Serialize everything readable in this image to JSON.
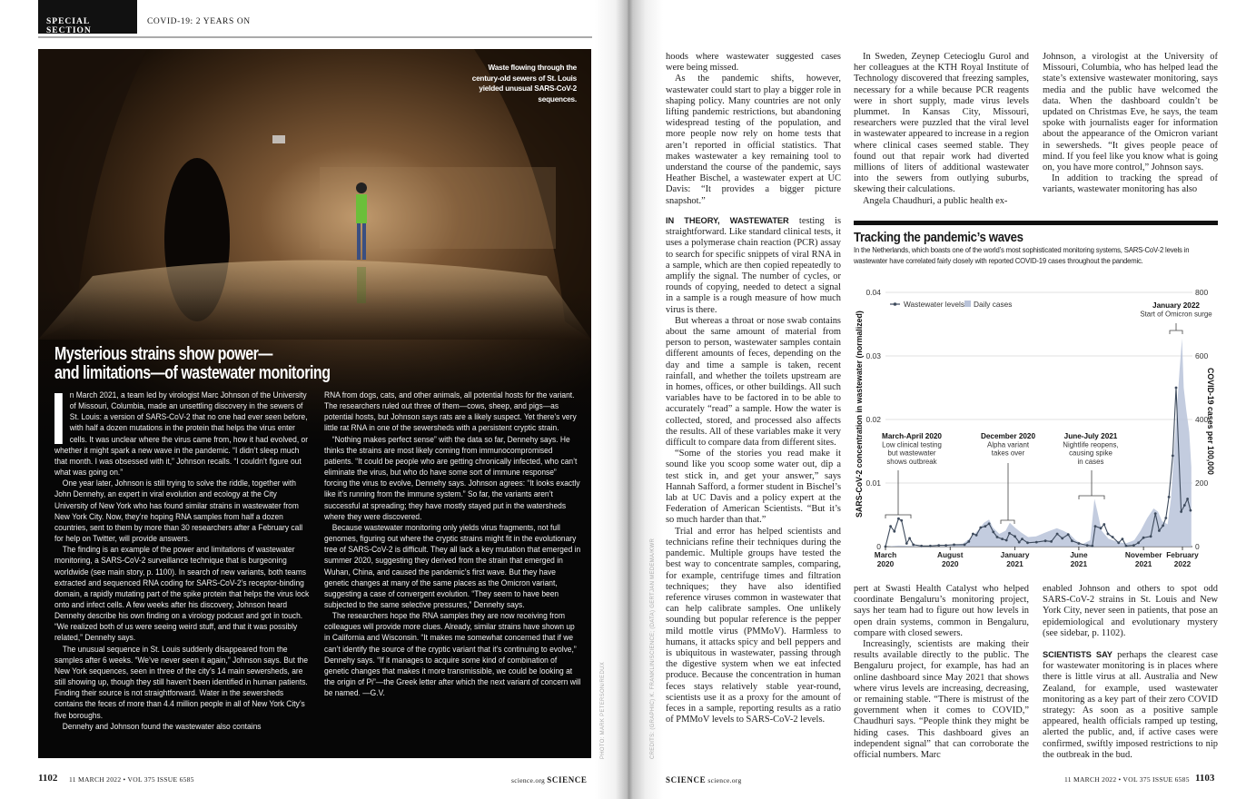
{
  "header": {
    "section": "SPECIAL SECTION",
    "title": "COVID-19: 2 YEARS ON"
  },
  "photo": {
    "caption": "Waste flowing through the century-old sewers of St. Louis yielded unusual SARS-CoV-2 sequences.",
    "credit": "PHOTO: MARK PETERSON/REDUX"
  },
  "sidebar": {
    "headline_line1": "Mysterious strains show power—",
    "headline_line2": "and limitations—of wastewater monitoring",
    "drop_cap": "I",
    "col1": [
      "n March 2021, a team led by virologist Marc Johnson of the University of Missouri, Columbia, made an unsettling discovery in the sewers of St. Louis: a version of SARS-CoV-2 that no one had ever seen before, with half a dozen mutations in the protein that helps the virus enter cells. It was unclear where the virus came from, how it had evolved, or whether it might spark a new wave in the pandemic. “I didn’t sleep much that month. I was obsessed with it,” Johnson recalls. “I couldn’t figure out what was going on.”",
      "One year later, Johnson is still trying to solve the riddle, together with John Dennehy, an expert in viral evolution and ecology at the City University of New York who has found similar strains in wastewater from New York City. Now, they’re hoping RNA samples from half a dozen countries, sent to them by more than 30 researchers after a February call for help on Twitter, will provide answers.",
      "The finding is an example of the power and limitations of wastewater monitoring, a SARS-CoV-2 surveillance technique that is burgeoning worldwide (see main story, p. 1100). In search of new variants, both teams extracted and sequenced RNA coding for SARS-CoV-2’s receptor-binding domain, a rapidly mutating part of the spike protein that helps the virus lock onto and infect cells. A few weeks after his discovery, Johnson heard Dennehy describe his own finding on a virology podcast and got in touch. “We realized both of us were seeing weird stuff, and that it was possibly related,” Dennehy says.",
      "The unusual sequence in St. Louis suddenly disappeared from the samples after 6 weeks. “We’ve never seen it again,” Johnson says. But the New York sequences, seen in three of the city’s 14 main sewersheds, are still showing up, though they still haven’t been identified in human patients. Finding their source is not straightforward. Water in the sewersheds contains the feces of more than 4.4 million people in all of New York City’s five boroughs.",
      "Dennehy and Johnson found the wastewater also contains"
    ],
    "col2": [
      "RNA from dogs, cats, and other animals, all potential hosts for the variant. The researchers ruled out three of them—cows, sheep, and pigs—as potential hosts, but Johnson says rats are a likely suspect. Yet there’s very little rat RNA in one of the sewersheds with a persistent cryptic strain.",
      "“Nothing makes perfect sense” with the data so far, Dennehy says. He thinks the strains are most likely coming from immunocompromised patients. “It could be people who are getting chronically infected, who can’t eliminate the virus, but who do have some sort of immune response” forcing the virus to evolve, Dennehy says. Johnson agrees: “It looks exactly like it’s running from the immune system.” So far, the variants aren’t successful at spreading; they have mostly stayed put in the watersheds where they were discovered.",
      "Because wastewater monitoring only yields virus fragments, not full genomes, figuring out where the cryptic strains might fit in the evolutionary tree of SARS-CoV-2 is difficult. They all lack a key mutation that emerged in summer 2020, suggesting they derived from the strain that emerged in Wuhan, China, and caused the pandemic’s first wave. But they have genetic changes at many of the same places as the Omicron variant, suggesting a case of convergent evolution. “They seem to have been subjected to the same selective pressures,” Dennehy says.",
      "The researchers hope the RNA samples they are now receiving from colleagues will provide more clues. Already, similar strains have shown up in California and Wisconsin. “It makes me somewhat concerned that if we can’t identify the source of the cryptic variant that it’s continuing to evolve,” Dennehy says. “If it manages to acquire some kind of combination of genetic changes that makes it more transmissible, we could be looking at the origin of Pi”—the Greek letter after which the next variant of concern will be named. —G.V."
    ]
  },
  "article": {
    "col1_top": [
      "hoods where wastewater suggested cases were being missed.",
      "As the pandemic shifts, however, wastewater could start to play a bigger role in shaping policy. Many countries are not only lifting pandemic restrictions, but abandoning widespread testing of the population, and more people now rely on home tests that aren’t reported in official statistics. That makes wastewater a key remaining tool to understand the course of the pandemic, says Heather Bischel, a wastewater expert at UC Davis: “It provides a bigger picture snapshot.”"
    ],
    "col1_leadin": "IN THEORY, WASTEWATER",
    "col1_lead_rest": " testing is straightforward. Like standard clinical tests, it uses a polymerase chain reaction (PCR) assay to search for specific snippets of viral RNA in a sample, which are then copied repeatedly to amplify the signal. The number of cycles, or rounds of copying, needed to detect a signal in a sample is a rough measure of how much virus is there.",
    "col1_bottom": [
      "But whereas a throat or nose swab contains about the same amount of material from person to person, wastewater samples contain different amounts of feces, depending on the day and time a sample is taken, recent rainfall, and whether the toilets upstream are in homes, offices, or other buildings. All such variables have to be factored in to be able to accurately “read” a sample. How the water is collected, stored, and processed also affects the results. All of these variables make it very difficult to compare data from different sites.",
      "“Some of the stories you read make it sound like you scoop some water out, dip a test stick in, and get your answer,” says Hannah Safford, a former student in Bischel’s lab at UC Davis and a policy expert at the Federation of American Scientists. “But it’s so much harder than that.”",
      "Trial and error has helped scientists and technicians refine their techniques during the pandemic. Multiple groups have tested the best way to concentrate samples, comparing, for example, centrifuge times and filtration techniques; they have also identified reference viruses common in wastewater that can help calibrate samples. One unlikely sounding but popular reference is the pepper mild mottle virus (PMMoV). Harmless to humans, it attacks spicy and bell peppers and is ubiquitous in wastewater, passing through the digestive system when we eat infected produce. Because the concentration in human feces stays relatively stable year-round, scientists use it as a proxy for the amount of feces in a sample, reporting results as a ratio of PMMoV levels to SARS-CoV-2 levels."
    ],
    "col2_top": [
      "In Sweden, Zeynep Cetecioglu Gurol and her colleagues at the KTH Royal Institute of Technology discovered that freezing samples, necessary for a while because PCR reagents were in short supply, made virus levels plummet. In Kansas City, Missouri, researchers were puzzled that the viral level in wastewater appeared to increase in a region where clinical cases seemed stable. They found out that repair work had diverted millions of liters of additional wastewater into the sewers from outlying suburbs, skewing their calculations.",
      "Angela Chaudhuri, a public health ex-"
    ],
    "col2_bottom": [
      "pert at Swasti Health Catalyst who helped coordinate Bengaluru’s monitoring project, says her team had to figure out how levels in open drain systems, common in Bengaluru, compare with closed sewers.",
      "Increasingly, scientists are making their results available directly to the public. The Bengaluru project, for example, has had an online dashboard since May 2021 that shows where virus levels are increasing, decreasing, or remaining stable. “There is mistrust of the government when it comes to COVID,” Chaudhuri says. “People think they might be hiding cases. This dashboard gives an independent signal” that can corroborate the official numbers. Marc"
    ],
    "col3_top": [
      "Johnson, a virologist at the University of Missouri, Columbia, who has helped lead the state’s extensive wastewater monitoring, says media and the public have welcomed the data. When the dashboard couldn’t be updated on Christmas Eve, he says, the team spoke with journalists eager for information about the appearance of the Omicron variant in sewersheds. “It gives people peace of mind. If you feel like you know what is going on, you have more control,” Johnson says.",
      "In addition to tracking the spread of variants, wastewater monitoring has also"
    ],
    "col3_bottom_cont": "enabled Johnson and others to spot odd SARS-CoV-2 strains in St. Louis and New York City, never seen in patients, that pose an epidemiological and evolutionary mystery (see sidebar, p. 1102).",
    "col3_leadin": "SCIENTISTS SAY",
    "col3_lead_rest": " perhaps the clearest case for wastewater monitoring is in places where there is little virus at all. Australia and New Zealand, for example, used wastewater monitoring as a key part of their zero COVID strategy: As soon as a positive sample appeared, health officials ramped up testing, alerted the public, and, if active cases were confirmed, swiftly imposed restrictions to nip the outbreak in the bud."
  },
  "chart_credit": "CREDITS: (GRAPHIC) K. FRANKLIN/SCIENCE; (DATA) GERTJAN MEDEMA/KWR",
  "chart_data": {
    "type": "line+area",
    "title": "Tracking the pandemic’s waves",
    "subtitle": "In the Netherlands, which boasts one of the world’s most sophisticated monitoring systems, SARS-CoV-2 levels in wastewater have correlated fairly closely with reported COVID-19 cases throughout the pandemic.",
    "ylabel_left": "SARS-CoV-2 concentration in wastewater (normalized)",
    "ylabel_right": "COVID-19 cases per 100,000",
    "ylim_left": [
      0,
      0.04
    ],
    "ylim_right": [
      0,
      800
    ],
    "yticks_left": [
      "0",
      "0.01",
      "0.02",
      "0.03",
      "0.04"
    ],
    "yticks_right": [
      "0",
      "200",
      "400",
      "600",
      "800"
    ],
    "xticks": [
      {
        "date": "2020-03-01",
        "line1": "March",
        "line2": "2020"
      },
      {
        "date": "2020-08-01",
        "line1": "August",
        "line2": "2020"
      },
      {
        "date": "2021-01-01",
        "line1": "January",
        "line2": "2021"
      },
      {
        "date": "2021-06-01",
        "line1": "June",
        "line2": "2021"
      },
      {
        "date": "2021-11-01",
        "line1": "November",
        "line2": "2021"
      },
      {
        "date": "2022-02-01",
        "line1": "February",
        "line2": "2022"
      }
    ],
    "grid": true,
    "legend_placement": "top-left",
    "series": [
      {
        "name": "Wastewater levels",
        "axis": "left",
        "color": "#3d4a5c",
        "points": [
          [
            "2020-03-01",
            0
          ],
          [
            "2020-03-13",
            0.0032
          ],
          [
            "2020-03-22",
            0.0024
          ],
          [
            "2020-04-01",
            0.0044
          ],
          [
            "2020-04-08",
            0.0041
          ],
          [
            "2020-04-20",
            0.0005
          ],
          [
            "2020-04-27",
            0.0013
          ],
          [
            "2020-05-06",
            0.0003
          ],
          [
            "2020-05-25",
            0.0001
          ],
          [
            "2020-06-15",
            0.0001
          ],
          [
            "2020-07-05",
            0.0002
          ],
          [
            "2020-07-22",
            0.0002
          ],
          [
            "2020-08-10",
            0.0003
          ],
          [
            "2020-09-04",
            0.0003
          ],
          [
            "2020-09-14",
            0.0008
          ],
          [
            "2020-09-24",
            0.002
          ],
          [
            "2020-10-02",
            0.0018
          ],
          [
            "2020-10-12",
            0.003
          ],
          [
            "2020-10-23",
            0.0032
          ],
          [
            "2020-11-01",
            0.0036
          ],
          [
            "2020-11-11",
            0.0023
          ],
          [
            "2020-11-20",
            0.0015
          ],
          [
            "2020-12-02",
            0.0012
          ],
          [
            "2020-12-12",
            0.001
          ],
          [
            "2020-12-19",
            0.0021
          ],
          [
            "2021-01-01",
            0.0016
          ],
          [
            "2021-01-11",
            0.0007
          ],
          [
            "2021-01-18",
            0.0012
          ],
          [
            "2021-01-31",
            0.0006
          ],
          [
            "2021-02-21",
            0.0007
          ],
          [
            "2021-03-14",
            0.0009
          ],
          [
            "2021-03-28",
            0.0008
          ],
          [
            "2021-04-11",
            0.002
          ],
          [
            "2021-04-23",
            0.0013
          ],
          [
            "2021-05-07",
            0.0019
          ],
          [
            "2021-05-16",
            0.0009
          ],
          [
            "2021-06-01",
            0.0005
          ],
          [
            "2021-06-21",
            0.0002
          ],
          [
            "2021-07-03",
            0.0001
          ],
          [
            "2021-07-10",
            0.0032
          ],
          [
            "2021-07-23",
            0.0029
          ],
          [
            "2021-07-31",
            0.0035
          ],
          [
            "2021-08-09",
            0.002
          ],
          [
            "2021-08-20",
            0.0015
          ],
          [
            "2021-09-03",
            0.0006
          ],
          [
            "2021-09-12",
            0.0012
          ],
          [
            "2021-09-21",
            0.0001
          ],
          [
            "2021-10-09",
            0.0002
          ],
          [
            "2021-10-20",
            0.0006
          ],
          [
            "2021-11-01",
            0.0014
          ],
          [
            "2021-11-18",
            0.0016
          ],
          [
            "2021-11-29",
            0.0052
          ],
          [
            "2021-12-08",
            0.0025
          ],
          [
            "2021-12-17",
            0.0033
          ],
          [
            "2021-12-24",
            0.0045
          ],
          [
            "2021-12-31",
            0.0078
          ],
          [
            "2022-01-09",
            0.0143
          ],
          [
            "2022-01-17",
            0.025
          ],
          [
            "2022-01-29",
            0.0055
          ],
          [
            "2022-02-06",
            0.0065
          ],
          [
            "2022-02-13",
            0.0075
          ],
          [
            "2022-02-20",
            0.0057
          ]
        ]
      },
      {
        "name": "Daily cases",
        "axis": "right",
        "color": "#b9c3d9",
        "points": [
          [
            "2020-03-01",
            0
          ],
          [
            "2020-04-01",
            3
          ],
          [
            "2020-05-01",
            2
          ],
          [
            "2020-06-01",
            1
          ],
          [
            "2020-07-01",
            1
          ],
          [
            "2020-08-01",
            2
          ],
          [
            "2020-09-01",
            10
          ],
          [
            "2020-09-20",
            30
          ],
          [
            "2020-10-05",
            50
          ],
          [
            "2020-10-20",
            75
          ],
          [
            "2020-11-01",
            85
          ],
          [
            "2020-11-10",
            60
          ],
          [
            "2020-11-25",
            40
          ],
          [
            "2020-12-10",
            50
          ],
          [
            "2020-12-20",
            75
          ],
          [
            "2021-01-01",
            60
          ],
          [
            "2021-01-15",
            45
          ],
          [
            "2021-02-01",
            30
          ],
          [
            "2021-02-20",
            32
          ],
          [
            "2021-03-10",
            42
          ],
          [
            "2021-03-25",
            50
          ],
          [
            "2021-04-10",
            58
          ],
          [
            "2021-04-25",
            50
          ],
          [
            "2021-05-10",
            40
          ],
          [
            "2021-05-25",
            20
          ],
          [
            "2021-06-10",
            8
          ],
          [
            "2021-06-28",
            20
          ],
          [
            "2021-07-08",
            150
          ],
          [
            "2021-07-15",
            110
          ],
          [
            "2021-07-25",
            50
          ],
          [
            "2021-08-10",
            25
          ],
          [
            "2021-09-01",
            15
          ],
          [
            "2021-09-20",
            10
          ],
          [
            "2021-10-10",
            20
          ],
          [
            "2021-10-25",
            50
          ],
          [
            "2021-11-10",
            90
          ],
          [
            "2021-11-25",
            120
          ],
          [
            "2021-12-05",
            110
          ],
          [
            "2021-12-15",
            80
          ],
          [
            "2021-12-28",
            70
          ],
          [
            "2022-01-05",
            150
          ],
          [
            "2022-01-12",
            300
          ],
          [
            "2022-01-20",
            450
          ],
          [
            "2022-01-25",
            550
          ],
          [
            "2022-01-31",
            655
          ],
          [
            "2022-02-04",
            500
          ],
          [
            "2022-02-10",
            430
          ],
          [
            "2022-02-17",
            360
          ],
          [
            "2022-02-22",
            250
          ]
        ]
      }
    ],
    "annotations": [
      {
        "title": "March-April 2020",
        "lines": [
          "Low clinical testing",
          "but wastewater",
          "shows outbreak"
        ]
      },
      {
        "title": "December 2020",
        "lines": [
          "Alpha variant",
          "takes over"
        ]
      },
      {
        "title": "June-July 2021",
        "lines": [
          "Nightlife reopens,",
          "causing spike",
          "in cases"
        ]
      },
      {
        "title": "January 2022",
        "lines": [
          "Start of Omicron surge"
        ]
      }
    ]
  },
  "footer": {
    "left_page": "1102",
    "issue": "11 MARCH 2022 • VOL 375 ISSUE 6585",
    "site": "science.org",
    "journal": "SCIENCE",
    "right_page": "1103"
  }
}
